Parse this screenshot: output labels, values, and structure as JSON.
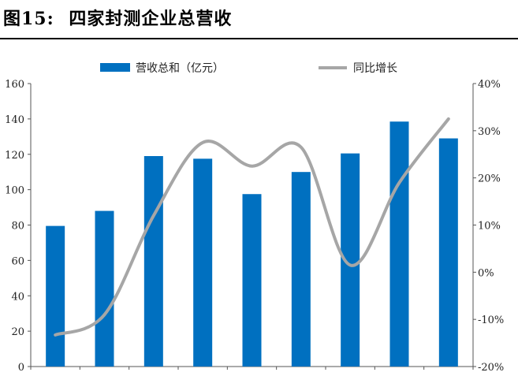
{
  "figure": {
    "label": "图15:",
    "title": "四家封测企业总营收"
  },
  "chart_data": {
    "type": "bar",
    "bar_color": "#0070C0",
    "line_color": "#A6A6A6",
    "series": [
      {
        "name": "营收总和（亿元）",
        "type": "bar",
        "axis": "left",
        "values": [
          79.5,
          88,
          119,
          117.5,
          97.5,
          110,
          120.5,
          138.5,
          129
        ]
      },
      {
        "name": "同比增长",
        "type": "line",
        "axis": "right",
        "values": [
          -13.3,
          -9,
          12,
          27.5,
          22.5,
          26.5,
          1.5,
          19,
          32.5
        ]
      }
    ],
    "left_axis": {
      "min": 0,
      "max": 160,
      "step": 20,
      "ticks": [
        "0",
        "20",
        "40",
        "60",
        "80",
        "100",
        "120",
        "140",
        "160"
      ]
    },
    "right_axis": {
      "min": -20,
      "max": 40,
      "step": 10,
      "ticks": [
        "-20%",
        "-10%",
        "0%",
        "10%",
        "20%",
        "30%",
        "40%"
      ]
    },
    "legend_position": "top",
    "grid": false
  }
}
